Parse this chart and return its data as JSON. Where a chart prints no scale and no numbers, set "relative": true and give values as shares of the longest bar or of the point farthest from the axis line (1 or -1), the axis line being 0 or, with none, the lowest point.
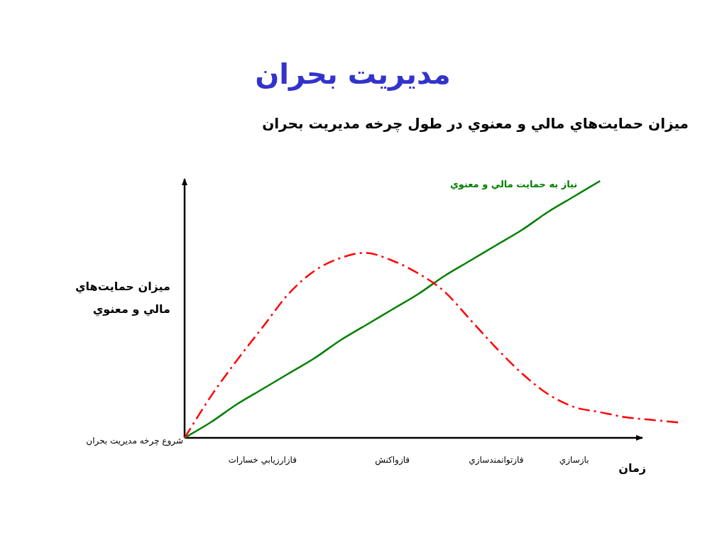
{
  "chart_data": {
    "type": "line",
    "relative": true,
    "title": "مديريت بحران",
    "subtitle": "ميزان حمايت‌هاي مالي و معنوي در طول چرخه مديريت بحران",
    "xlabel": "زمان",
    "ylabel": "ميزان حمايت‌هاي مالي و معنوي",
    "annotations": [
      "شروع چرخه مديريت بحران"
    ],
    "categories": [
      null,
      null,
      null,
      "فازارزيابي خسارات",
      null,
      null,
      null,
      null,
      "فازواكنش",
      null,
      null,
      null,
      "فازتوانمندسازي",
      null,
      null,
      "بازسازي",
      null,
      null,
      null,
      null
    ],
    "series": [
      {
        "name": "نیاز به حمایت مالي و معنوي",
        "color": "#008000",
        "line_style": "solid",
        "values": [
          0,
          0.06,
          0.13,
          0.19,
          0.25,
          0.31,
          0.38,
          0.44,
          0.5,
          0.56,
          0.63,
          0.69,
          0.75,
          0.81,
          0.88,
          0.94,
          1,
          null,
          null,
          null
        ]
      },
      {
        "color": "#ff0000",
        "line_style": "dashdot",
        "values": [
          0,
          0.16,
          0.3,
          0.43,
          0.56,
          0.65,
          0.7,
          0.72,
          0.69,
          0.64,
          0.57,
          0.46,
          0.35,
          0.25,
          0.17,
          0.12,
          0.1,
          0.08,
          0.07,
          0.06
        ]
      }
    ],
    "legend": false
  }
}
